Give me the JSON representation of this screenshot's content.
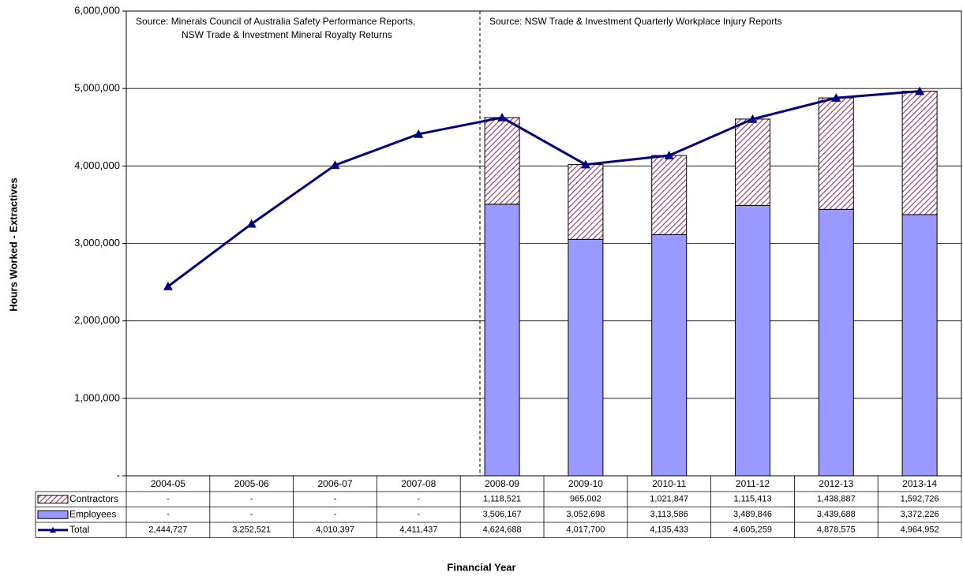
{
  "chart_data": {
    "type": "bar",
    "stacked": true,
    "y_label": "Hours Worked - Extractives",
    "x_label": "Financial Year",
    "annotations": [
      "Source:  Minerals Council of Australia Safety Performance Reports,",
      "NSW Trade & Investment Mineral Royalty Returns",
      "Source:  NSW Trade & Investment Quarterly Workplace Injury Reports"
    ],
    "categories": [
      "2004-05",
      "2005-06",
      "2006-07",
      "2007-08",
      "2008-09",
      "2009-10",
      "2010-11",
      "2011-12",
      "2012-13",
      "2013-14"
    ],
    "series": [
      {
        "name": "Contractors",
        "type": "bar",
        "color": "#993366",
        "hatch": true,
        "values": [
          null,
          null,
          null,
          null,
          1118521,
          965002,
          1021847,
          1115413,
          1438887,
          1592726
        ],
        "value_labels": [
          "-",
          "-",
          "-",
          "-",
          "1,118,521",
          "965,002",
          "1,021,847",
          "1,115,413",
          "1,438,887",
          "1,592,726"
        ]
      },
      {
        "name": "Employees",
        "type": "bar",
        "color": "#9999ff",
        "values": [
          null,
          null,
          null,
          null,
          3506167,
          3052698,
          3113586,
          3489846,
          3439688,
          3372226
        ],
        "value_labels": [
          "-",
          "-",
          "-",
          "-",
          "3,506,167",
          "3,052,698",
          "3,113,586",
          "3,489,846",
          "3,439,688",
          "3,372,226"
        ]
      },
      {
        "name": "Total",
        "type": "line",
        "color": "#000080",
        "values": [
          2444727,
          3252521,
          4010397,
          4411437,
          4624688,
          4017700,
          4135433,
          4605259,
          4878575,
          4964952
        ],
        "value_labels": [
          "2,444,727",
          "3,252,521",
          "4,010,397",
          "4,411,437",
          "4,624,688",
          "4,017,700",
          "4,135,433",
          "4,605,259",
          "4,878,575",
          "4,964,952"
        ]
      }
    ],
    "ylim": [
      0,
      6000000
    ],
    "yticks": [
      {
        "value": 0,
        "label": "-"
      },
      {
        "value": 1000000,
        "label": "1,000,000"
      },
      {
        "value": 2000000,
        "label": "2,000,000"
      },
      {
        "value": 3000000,
        "label": "3,000,000"
      },
      {
        "value": 4000000,
        "label": "4,000,000"
      },
      {
        "value": 5000000,
        "label": "5,000,000"
      },
      {
        "value": 6000000,
        "label": "6,000,000"
      }
    ],
    "grid": true
  }
}
